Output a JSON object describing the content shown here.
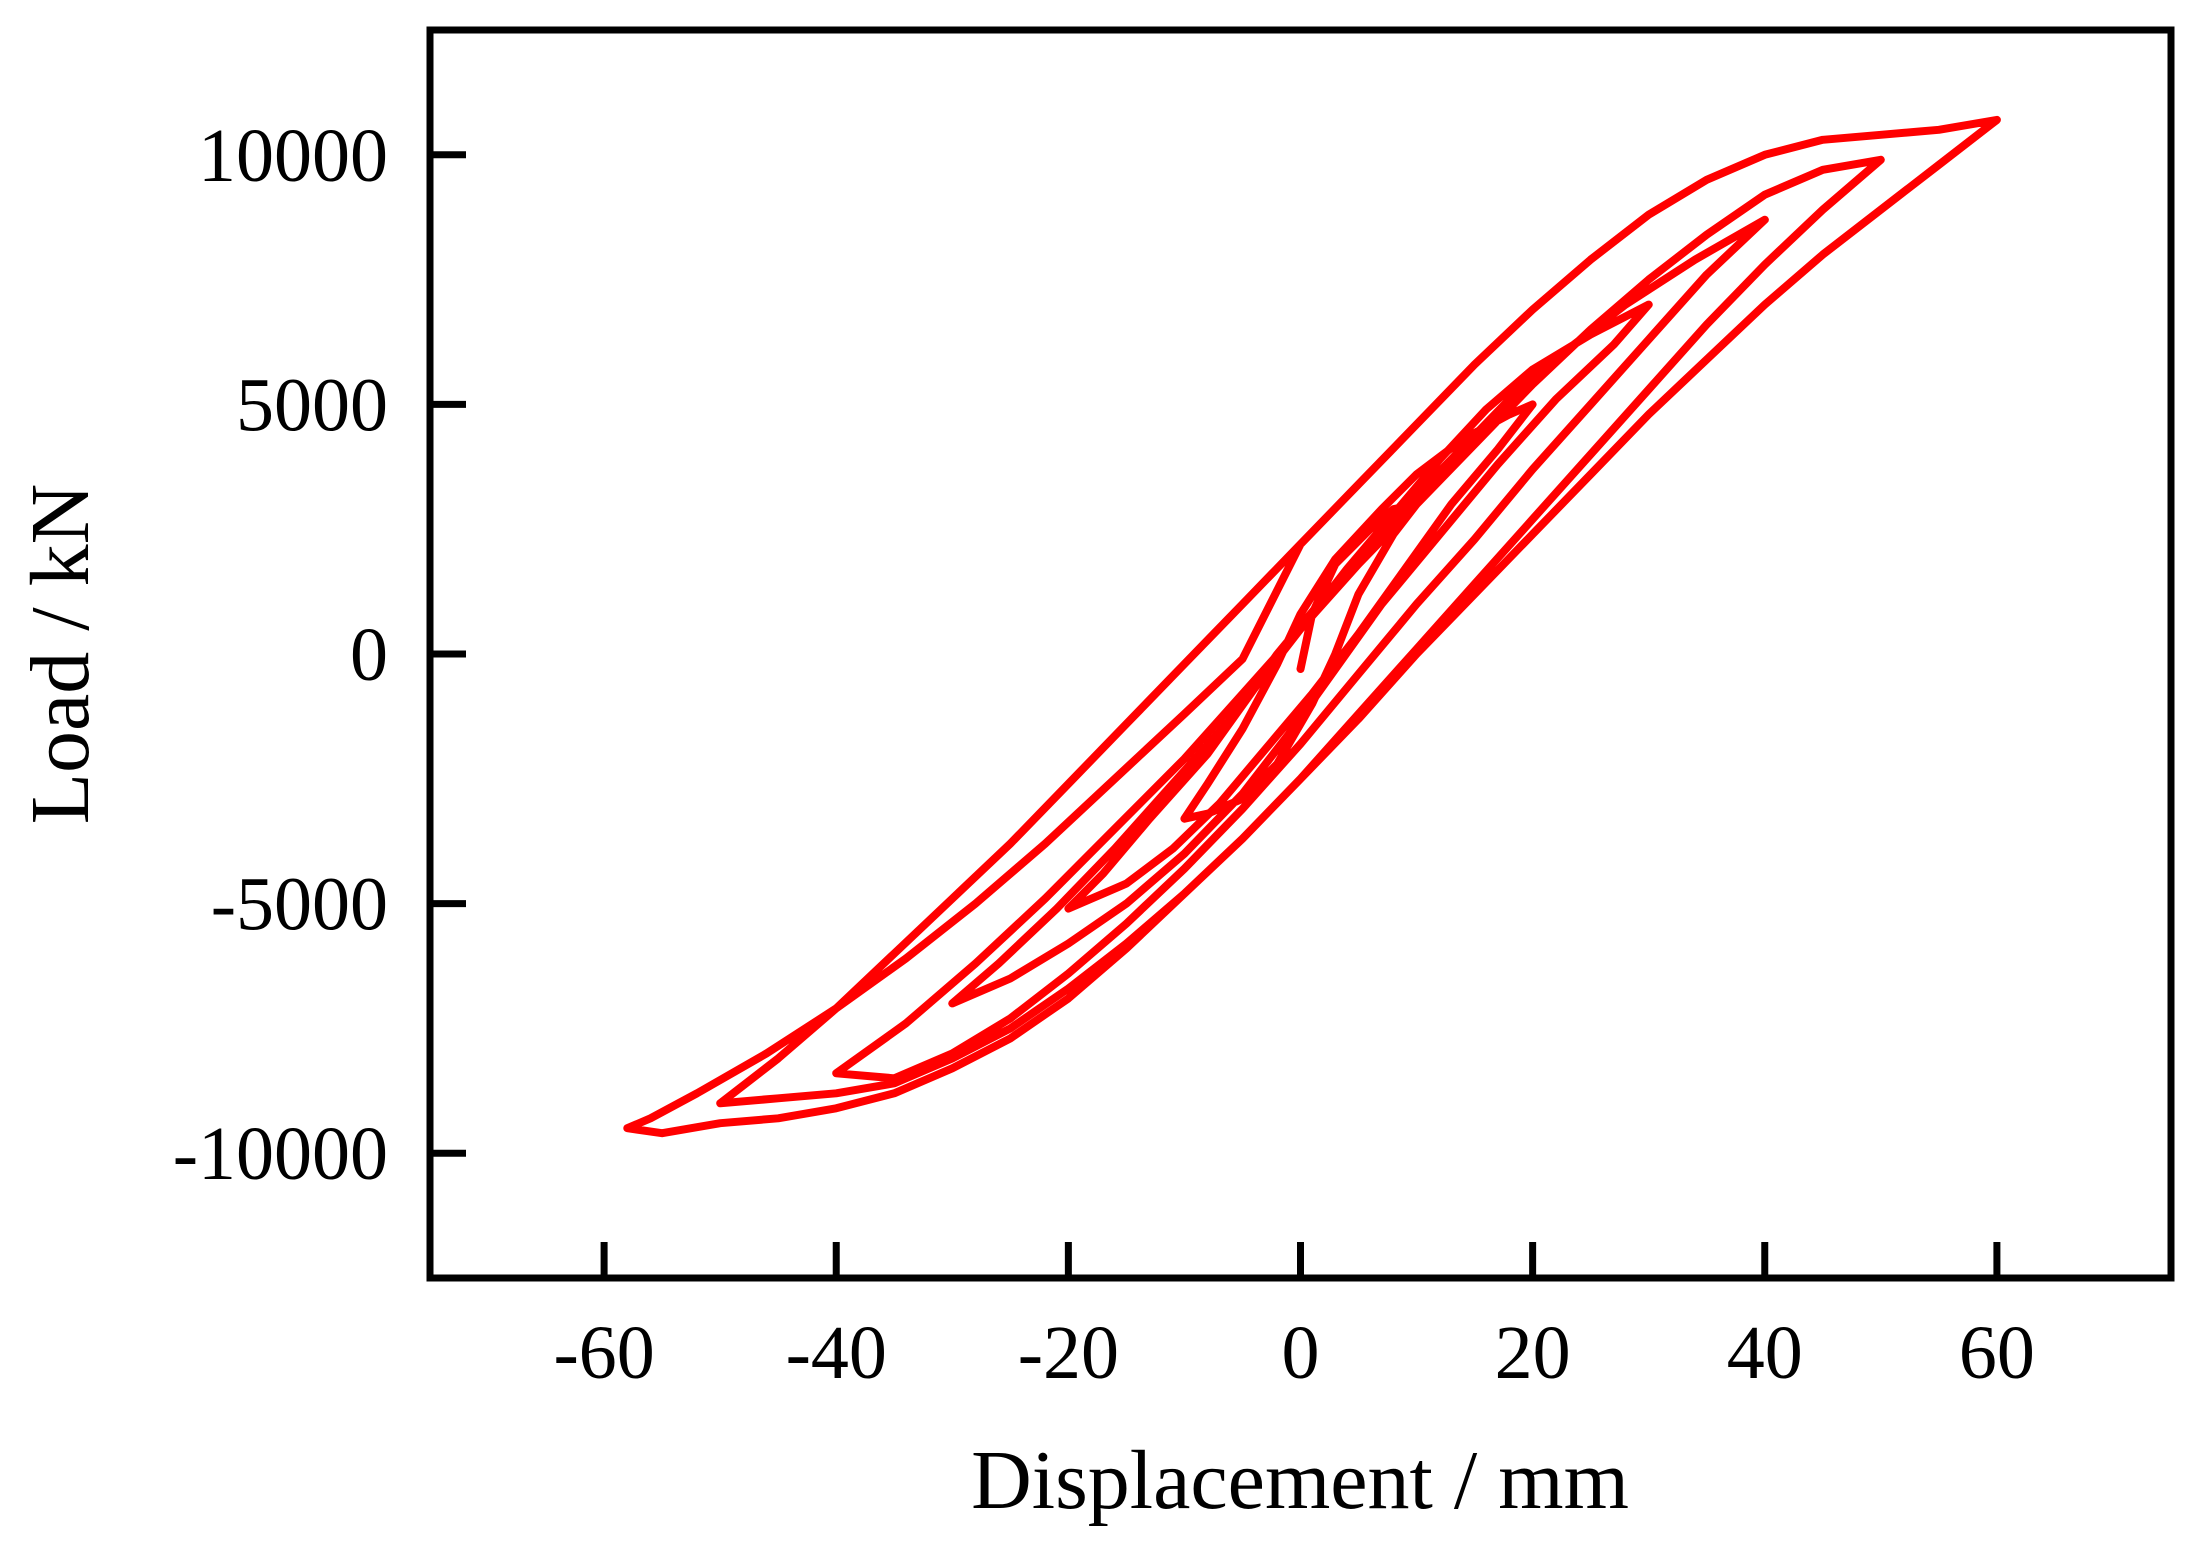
{
  "chart_data": {
    "type": "line",
    "xlabel": "Displacement / mm",
    "ylabel": "Load / kN",
    "xlim": [
      -75,
      75
    ],
    "ylim": [
      -12500,
      12500
    ],
    "xticks": [
      -60,
      -40,
      -20,
      0,
      20,
      40,
      60
    ],
    "xtick_labels": [
      "-60",
      "-40",
      "-20",
      "0",
      "20",
      "40",
      "60"
    ],
    "yticks": [
      10000,
      5000,
      0,
      -5000,
      -10000
    ],
    "ytick_labels": [
      "10000",
      "5000",
      "0",
      "-5000",
      "-10000"
    ],
    "grid": false,
    "legend": "none",
    "colors": {
      "series": "#ff0000",
      "axes": "#000000"
    },
    "series": [
      {
        "points": [
          [
            0,
            -300
          ],
          [
            1,
            800
          ],
          [
            3,
            1800
          ],
          [
            6,
            2500
          ],
          [
            8,
            2900
          ],
          [
            10,
            3000
          ],
          [
            8,
            2400
          ],
          [
            5,
            1200
          ],
          [
            3,
            0
          ],
          [
            1,
            -1000
          ],
          [
            -2,
            -2200
          ],
          [
            -5,
            -2900
          ],
          [
            -8,
            -3200
          ],
          [
            -10,
            -3300
          ],
          [
            -8,
            -2600
          ],
          [
            -5,
            -1500
          ],
          [
            -2,
            -200
          ],
          [
            0,
            800
          ],
          [
            3,
            1900
          ],
          [
            7,
            2900
          ],
          [
            10,
            3600
          ],
          [
            14,
            4300
          ],
          [
            18,
            4800
          ],
          [
            20,
            5000
          ],
          [
            17,
            4100
          ],
          [
            13,
            3000
          ],
          [
            9,
            1700
          ],
          [
            5,
            400
          ],
          [
            1,
            -800
          ],
          [
            -3,
            -1900
          ],
          [
            -7,
            -3000
          ],
          [
            -11,
            -3900
          ],
          [
            -15,
            -4600
          ],
          [
            -19,
            -5000
          ],
          [
            -20,
            -5100
          ],
          [
            -17,
            -4400
          ],
          [
            -13,
            -3300
          ],
          [
            -8,
            -2000
          ],
          [
            -4,
            -700
          ],
          [
            0,
            500
          ],
          [
            4,
            1700
          ],
          [
            8,
            2800
          ],
          [
            12,
            3900
          ],
          [
            16,
            4900
          ],
          [
            20,
            5700
          ],
          [
            25,
            6400
          ],
          [
            30,
            7000
          ],
          [
            27,
            6200
          ],
          [
            22,
            5100
          ],
          [
            17,
            3800
          ],
          [
            12,
            2400
          ],
          [
            7,
            1000
          ],
          [
            3,
            -300
          ],
          [
            -1,
            -1600
          ],
          [
            -5,
            -2800
          ],
          [
            -10,
            -4000
          ],
          [
            -15,
            -5000
          ],
          [
            -20,
            -5800
          ],
          [
            -25,
            -6500
          ],
          [
            -30,
            -7000
          ],
          [
            -26,
            -6200
          ],
          [
            -21,
            -5100
          ],
          [
            -16,
            -3900
          ],
          [
            -11,
            -2600
          ],
          [
            -6,
            -1300
          ],
          [
            -2,
            0
          ],
          [
            3,
            1400
          ],
          [
            8,
            2700
          ],
          [
            13,
            3900
          ],
          [
            18,
            5100
          ],
          [
            23,
            6100
          ],
          [
            28,
            7000
          ],
          [
            34,
            7900
          ],
          [
            40,
            8700
          ],
          [
            35,
            7600
          ],
          [
            30,
            6300
          ],
          [
            25,
            5000
          ],
          [
            20,
            3700
          ],
          [
            15,
            2300
          ],
          [
            10,
            1000
          ],
          [
            5,
            -400
          ],
          [
            0,
            -1800
          ],
          [
            -5,
            -3100
          ],
          [
            -10,
            -4300
          ],
          [
            -15,
            -5400
          ],
          [
            -20,
            -6400
          ],
          [
            -25,
            -7300
          ],
          [
            -30,
            -8000
          ],
          [
            -35,
            -8500
          ],
          [
            -40,
            -8400
          ],
          [
            -34,
            -7400
          ],
          [
            -28,
            -6200
          ],
          [
            -22,
            -4900
          ],
          [
            -16,
            -3500
          ],
          [
            -10,
            -2100
          ],
          [
            -5,
            -800
          ],
          [
            0,
            500
          ],
          [
            5,
            1800
          ],
          [
            10,
            3000
          ],
          [
            15,
            4200
          ],
          [
            20,
            5400
          ],
          [
            25,
            6500
          ],
          [
            30,
            7500
          ],
          [
            35,
            8400
          ],
          [
            40,
            9200
          ],
          [
            45,
            9700
          ],
          [
            50,
            9900
          ],
          [
            45,
            8900
          ],
          [
            40,
            7800
          ],
          [
            35,
            6600
          ],
          [
            30,
            5300
          ],
          [
            25,
            4000
          ],
          [
            20,
            2700
          ],
          [
            15,
            1400
          ],
          [
            10,
            100
          ],
          [
            5,
            -1200
          ],
          [
            0,
            -2500
          ],
          [
            -5,
            -3700
          ],
          [
            -10,
            -4800
          ],
          [
            -15,
            -5800
          ],
          [
            -20,
            -6700
          ],
          [
            -25,
            -7500
          ],
          [
            -30,
            -8100
          ],
          [
            -35,
            -8600
          ],
          [
            -40,
            -8800
          ],
          [
            -45,
            -8900
          ],
          [
            -50,
            -9000
          ],
          [
            -45,
            -8100
          ],
          [
            -40,
            -7100
          ],
          [
            -35,
            -6000
          ],
          [
            -30,
            -4900
          ],
          [
            -25,
            -3800
          ],
          [
            -20,
            -2600
          ],
          [
            -15,
            -1400
          ],
          [
            -10,
            -200
          ],
          [
            -5,
            1000
          ],
          [
            0,
            2200
          ],
          [
            5,
            3400
          ],
          [
            10,
            4600
          ],
          [
            15,
            5800
          ],
          [
            20,
            6900
          ],
          [
            25,
            7900
          ],
          [
            30,
            8800
          ],
          [
            35,
            9500
          ],
          [
            40,
            10000
          ],
          [
            45,
            10300
          ],
          [
            50,
            10400
          ],
          [
            55,
            10500
          ],
          [
            60,
            10700
          ],
          [
            55,
            9800
          ],
          [
            50,
            8900
          ],
          [
            45,
            8000
          ],
          [
            40,
            7000
          ],
          [
            35,
            5900
          ],
          [
            30,
            4800
          ],
          [
            25,
            3600
          ],
          [
            20,
            2400
          ],
          [
            15,
            1200
          ],
          [
            10,
            0
          ],
          [
            5,
            -1300
          ],
          [
            0,
            -2500
          ],
          [
            -5,
            -3700
          ],
          [
            -10,
            -4800
          ],
          [
            -15,
            -5900
          ],
          [
            -20,
            -6900
          ],
          [
            -25,
            -7700
          ],
          [
            -30,
            -8300
          ],
          [
            -35,
            -8800
          ],
          [
            -40,
            -9100
          ],
          [
            -45,
            -9300
          ],
          [
            -50,
            -9400
          ],
          [
            -55,
            -9600
          ],
          [
            -58,
            -9500
          ],
          [
            -56,
            -9300
          ],
          [
            -52,
            -8800
          ],
          [
            -46,
            -8000
          ],
          [
            -40,
            -7100
          ],
          [
            -34,
            -6100
          ],
          [
            -28,
            -5000
          ],
          [
            -22,
            -3800
          ],
          [
            -16,
            -2500
          ],
          [
            -10,
            -1200
          ],
          [
            -5,
            -100
          ],
          [
            0,
            2200
          ]
        ]
      }
    ]
  }
}
